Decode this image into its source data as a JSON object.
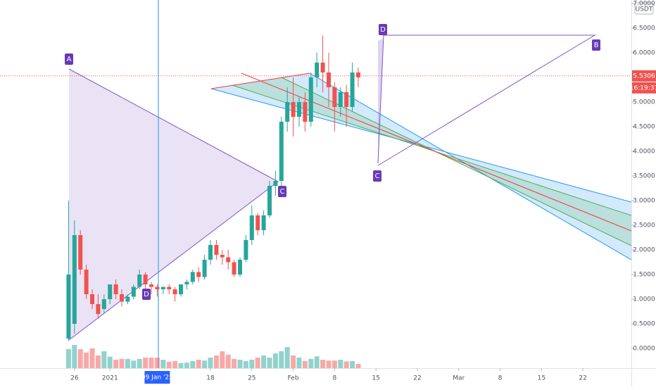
{
  "chart_data": {
    "type": "candlestick",
    "currency": "USDT",
    "x": [
      0,
      1,
      2,
      3,
      4,
      5,
      6,
      7,
      8,
      9,
      10,
      11,
      12,
      13,
      14,
      15,
      16,
      17,
      18,
      19,
      20,
      21,
      22,
      23,
      24,
      25,
      26,
      27,
      28,
      29,
      30,
      31,
      32,
      33,
      34,
      35,
      36,
      37,
      38,
      39,
      40,
      41,
      42,
      43,
      44,
      45,
      46,
      47,
      48,
      49
    ],
    "open": [
      0.2,
      0.5,
      2.3,
      1.6,
      1.1,
      0.9,
      0.8,
      1.0,
      1.3,
      1.1,
      0.95,
      1.05,
      1.25,
      1.5,
      1.3,
      1.25,
      1.2,
      1.25,
      1.2,
      1.1,
      1.3,
      1.35,
      1.55,
      1.45,
      1.8,
      2.1,
      1.9,
      1.85,
      1.75,
      1.5,
      1.8,
      2.2,
      2.7,
      2.4,
      2.7,
      3.3,
      3.4,
      4.6,
      5.0,
      4.7,
      5.0,
      4.6,
      5.5,
      5.8,
      5.6,
      5.3,
      4.9,
      5.2,
      4.9,
      5.6
    ],
    "high": [
      3.0,
      2.6,
      2.4,
      1.7,
      1.2,
      1.1,
      1.1,
      1.3,
      1.4,
      1.2,
      1.1,
      1.3,
      1.6,
      1.55,
      1.35,
      1.3,
      1.25,
      1.3,
      1.25,
      1.3,
      1.4,
      1.6,
      1.65,
      1.9,
      2.2,
      2.2,
      2.0,
      2.0,
      1.8,
      1.85,
      2.3,
      2.9,
      2.75,
      2.8,
      3.4,
      3.6,
      4.7,
      5.3,
      5.5,
      5.1,
      5.2,
      5.6,
      6.0,
      6.35,
      6.0,
      5.4,
      5.3,
      5.35,
      5.8,
      5.7
    ],
    "low": [
      0.15,
      0.3,
      1.5,
      1.0,
      0.8,
      0.6,
      0.7,
      0.9,
      1.0,
      0.85,
      0.9,
      1.0,
      1.2,
      1.0,
      1.1,
      1.05,
      1.1,
      1.1,
      0.95,
      1.05,
      1.2,
      1.3,
      1.35,
      1.4,
      1.7,
      1.8,
      1.7,
      1.6,
      1.45,
      1.45,
      1.75,
      2.1,
      2.3,
      2.3,
      2.65,
      3.1,
      3.3,
      4.4,
      4.3,
      4.5,
      4.4,
      4.5,
      5.3,
      5.2,
      4.9,
      4.4,
      4.7,
      4.5,
      4.8,
      5.3
    ],
    "close": [
      1.5,
      2.3,
      1.6,
      1.1,
      0.9,
      0.7,
      1.0,
      1.3,
      1.1,
      0.95,
      1.05,
      1.25,
      1.5,
      1.3,
      1.25,
      1.2,
      1.25,
      1.2,
      1.1,
      1.3,
      1.35,
      1.55,
      1.45,
      1.8,
      2.1,
      1.9,
      1.85,
      1.75,
      1.5,
      1.8,
      2.2,
      2.7,
      2.4,
      2.7,
      3.3,
      3.4,
      4.6,
      5.0,
      4.7,
      5.0,
      4.6,
      5.5,
      5.8,
      5.6,
      5.3,
      4.9,
      5.2,
      4.9,
      5.6,
      5.5
    ],
    "volume": [
      45,
      55,
      45,
      37,
      47,
      30,
      40,
      27,
      20,
      22,
      22,
      18,
      22,
      25,
      25,
      25,
      20,
      15,
      17,
      12,
      13,
      17,
      20,
      18,
      25,
      30,
      40,
      32,
      22,
      20,
      17,
      20,
      25,
      30,
      25,
      35,
      40,
      50,
      30,
      25,
      17,
      22,
      28,
      20,
      18,
      18,
      20,
      16,
      17,
      10
    ],
    "volume_lim": [
      0,
      100
    ],
    "up_color": "#26a69a",
    "down_color": "#ef5350",
    "xlim": [
      -11.6,
      95.2
    ],
    "xticks": [
      {
        "value": 1,
        "label": "26"
      },
      {
        "value": 7,
        "label": "2021"
      },
      {
        "value": 24,
        "label": "18"
      },
      {
        "value": 31,
        "label": "25"
      },
      {
        "value": 38,
        "label": "Feb"
      },
      {
        "value": 45,
        "label": "8"
      },
      {
        "value": 52,
        "label": "15"
      },
      {
        "value": 59,
        "label": "22"
      },
      {
        "value": 66,
        "label": "Mar"
      },
      {
        "value": 73,
        "label": "8"
      },
      {
        "value": 80,
        "label": "15"
      },
      {
        "value": 87,
        "label": "22"
      }
    ],
    "crosshair_x": {
      "value": 15,
      "label": "09 Jan '21"
    },
    "ylim": [
      -0.4,
      7.07
    ],
    "yticks": [
      {
        "value": 0,
        "label": "0.0000"
      },
      {
        "value": 0.5,
        "label": "0.5000"
      },
      {
        "value": 1,
        "label": "1.0000"
      },
      {
        "value": 1.5,
        "label": "1.5000"
      },
      {
        "value": 2,
        "label": "2.0000"
      },
      {
        "value": 2.5,
        "label": "2.5000"
      },
      {
        "value": 3,
        "label": "3.0000"
      },
      {
        "value": 3.5,
        "label": "3.5000"
      },
      {
        "value": 4,
        "label": "4.0000"
      },
      {
        "value": 4.5,
        "label": "4.5000"
      },
      {
        "value": 5,
        "label": "5.0000"
      },
      {
        "value": 5.5,
        "label": "5.5000"
      },
      {
        "value": 6,
        "label": "6.0000"
      },
      {
        "value": 6.5,
        "label": "6.5000"
      },
      {
        "value": 7,
        "label": "7.0000"
      }
    ],
    "last_price": {
      "value": 5.5306,
      "label": "5.5306"
    },
    "countdown": "16:19:37",
    "triangle_labels": [
      "A",
      "D",
      "C"
    ],
    "pattern_labels": [
      "D",
      "C",
      "B"
    ]
  }
}
